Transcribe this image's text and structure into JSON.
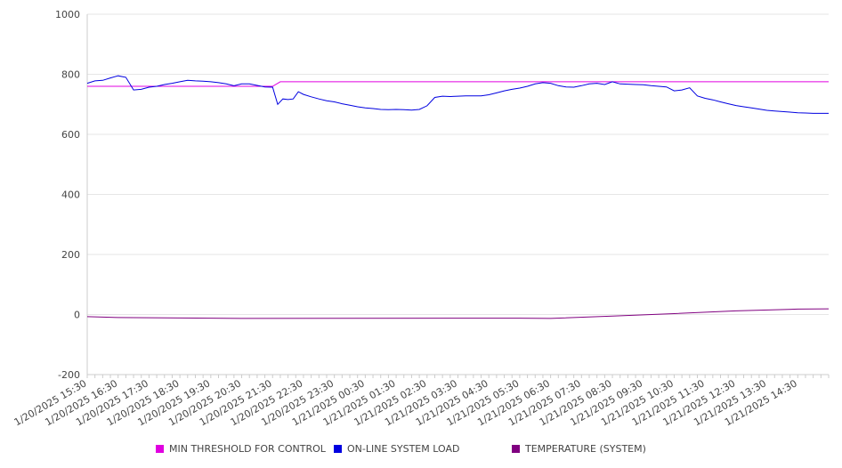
{
  "chart_data": {
    "type": "line",
    "title": "",
    "xlabel": "",
    "ylabel": "",
    "ylim": [
      -200,
      1000
    ],
    "yticks": [
      -200,
      0,
      200,
      400,
      600,
      800,
      1000
    ],
    "x_tick_labels": [
      "1/20/2025 15:30",
      "1/20/2025 16:30",
      "1/20/2025 17:30",
      "1/20/2025 18:30",
      "1/20/2025 19:30",
      "1/20/2025 20:30",
      "1/20/2025 21:30",
      "1/20/2025 22:30",
      "1/20/2025 23:30",
      "1/21/2025 00:30",
      "1/21/2025 01:30",
      "1/21/2025 02:30",
      "1/21/2025 03:30",
      "1/21/2025 04:30",
      "1/21/2025 05:30",
      "1/21/2025 06:30",
      "1/21/2025 07:30",
      "1/21/2025 08:30",
      "1/21/2025 09:30",
      "1/21/2025 10:30",
      "1/21/2025 11:30",
      "1/21/2025 12:30",
      "1/21/2025 13:30",
      "1/21/2025 14:30"
    ],
    "grid": true,
    "legend_position": "bottom",
    "series": [
      {
        "name": "MIN THRESHOLD FOR CONTROL",
        "color": "#e000e0",
        "points": [
          [
            "1/20/2025 15:30",
            760
          ],
          [
            "1/20/2025 21:30",
            760
          ],
          [
            "1/20/2025 21:45",
            775
          ],
          [
            "1/21/2025 15:30",
            775
          ]
        ]
      },
      {
        "name": "ON-LINE SYSTEM LOAD",
        "color": "#0000e0",
        "points": [
          [
            "1/20/2025 15:30",
            770
          ],
          [
            "1/20/2025 15:45",
            778
          ],
          [
            "1/20/2025 16:00",
            780
          ],
          [
            "1/20/2025 16:15",
            788
          ],
          [
            "1/20/2025 16:30",
            795
          ],
          [
            "1/20/2025 16:45",
            790
          ],
          [
            "1/20/2025 17:00",
            748
          ],
          [
            "1/20/2025 17:15",
            750
          ],
          [
            "1/20/2025 17:30",
            757
          ],
          [
            "1/20/2025 17:45",
            760
          ],
          [
            "1/20/2025 18:00",
            766
          ],
          [
            "1/20/2025 18:15",
            770
          ],
          [
            "1/20/2025 18:30",
            775
          ],
          [
            "1/20/2025 18:45",
            780
          ],
          [
            "1/20/2025 19:00",
            778
          ],
          [
            "1/20/2025 19:15",
            777
          ],
          [
            "1/20/2025 19:30",
            775
          ],
          [
            "1/20/2025 19:45",
            772
          ],
          [
            "1/20/2025 20:00",
            768
          ],
          [
            "1/20/2025 20:15",
            762
          ],
          [
            "1/20/2025 20:30",
            768
          ],
          [
            "1/20/2025 20:45",
            768
          ],
          [
            "1/20/2025 21:00",
            763
          ],
          [
            "1/20/2025 21:15",
            758
          ],
          [
            "1/20/2025 21:30",
            757
          ],
          [
            "1/20/2025 21:40",
            700
          ],
          [
            "1/20/2025 21:50",
            718
          ],
          [
            "1/20/2025 22:00",
            716
          ],
          [
            "1/20/2025 22:10",
            718
          ],
          [
            "1/20/2025 22:20",
            742
          ],
          [
            "1/20/2025 22:30",
            733
          ],
          [
            "1/20/2025 22:45",
            725
          ],
          [
            "1/20/2025 23:00",
            718
          ],
          [
            "1/20/2025 23:15",
            712
          ],
          [
            "1/20/2025 23:30",
            708
          ],
          [
            "1/20/2025 23:45",
            702
          ],
          [
            "1/21/2025 00:00",
            697
          ],
          [
            "1/21/2025 00:15",
            692
          ],
          [
            "1/21/2025 00:30",
            688
          ],
          [
            "1/21/2025 00:45",
            686
          ],
          [
            "1/21/2025 01:00",
            683
          ],
          [
            "1/21/2025 01:15",
            682
          ],
          [
            "1/21/2025 01:30",
            683
          ],
          [
            "1/21/2025 01:45",
            682
          ],
          [
            "1/21/2025 02:00",
            681
          ],
          [
            "1/21/2025 02:15",
            683
          ],
          [
            "1/21/2025 02:30",
            695
          ],
          [
            "1/21/2025 02:45",
            723
          ],
          [
            "1/21/2025 03:00",
            727
          ],
          [
            "1/21/2025 03:15",
            726
          ],
          [
            "1/21/2025 03:30",
            727
          ],
          [
            "1/21/2025 03:45",
            728
          ],
          [
            "1/21/2025 04:00",
            728
          ],
          [
            "1/21/2025 04:15",
            728
          ],
          [
            "1/21/2025 04:30",
            732
          ],
          [
            "1/21/2025 04:45",
            738
          ],
          [
            "1/21/2025 05:00",
            745
          ],
          [
            "1/21/2025 05:15",
            750
          ],
          [
            "1/21/2025 05:30",
            754
          ],
          [
            "1/21/2025 05:45",
            760
          ],
          [
            "1/21/2025 06:00",
            768
          ],
          [
            "1/21/2025 06:15",
            772
          ],
          [
            "1/21/2025 06:30",
            770
          ],
          [
            "1/21/2025 06:45",
            762
          ],
          [
            "1/21/2025 07:00",
            758
          ],
          [
            "1/21/2025 07:15",
            757
          ],
          [
            "1/21/2025 07:30",
            762
          ],
          [
            "1/21/2025 07:45",
            768
          ],
          [
            "1/21/2025 08:00",
            770
          ],
          [
            "1/21/2025 08:15",
            766
          ],
          [
            "1/21/2025 08:30",
            775
          ],
          [
            "1/21/2025 08:45",
            768
          ],
          [
            "1/21/2025 09:00",
            767
          ],
          [
            "1/21/2025 09:15",
            766
          ],
          [
            "1/21/2025 09:30",
            765
          ],
          [
            "1/21/2025 09:45",
            762
          ],
          [
            "1/21/2025 10:00",
            760
          ],
          [
            "1/21/2025 10:15",
            758
          ],
          [
            "1/21/2025 10:30",
            745
          ],
          [
            "1/21/2025 10:45",
            748
          ],
          [
            "1/21/2025 11:00",
            755
          ],
          [
            "1/21/2025 11:15",
            728
          ],
          [
            "1/21/2025 11:30",
            720
          ],
          [
            "1/21/2025 11:45",
            715
          ],
          [
            "1/21/2025 12:00",
            708
          ],
          [
            "1/21/2025 12:15",
            702
          ],
          [
            "1/21/2025 12:30",
            696
          ],
          [
            "1/21/2025 12:45",
            692
          ],
          [
            "1/21/2025 13:00",
            688
          ],
          [
            "1/21/2025 13:15",
            684
          ],
          [
            "1/21/2025 13:30",
            680
          ],
          [
            "1/21/2025 13:45",
            678
          ],
          [
            "1/21/2025 14:00",
            676
          ],
          [
            "1/21/2025 14:15",
            674
          ],
          [
            "1/21/2025 14:30",
            672
          ],
          [
            "1/21/2025 14:45",
            671
          ],
          [
            "1/21/2025 15:00",
            670
          ],
          [
            "1/21/2025 15:15",
            670
          ],
          [
            "1/21/2025 15:30",
            670
          ]
        ]
      },
      {
        "name": "TEMPERATURE (SYSTEM)",
        "color": "#800080",
        "points": [
          [
            "1/20/2025 15:30",
            -7
          ],
          [
            "1/20/2025 16:30",
            -10
          ],
          [
            "1/20/2025 20:30",
            -13
          ],
          [
            "1/21/2025 05:30",
            -12
          ],
          [
            "1/21/2025 06:30",
            -13
          ],
          [
            "1/21/2025 08:30",
            -5
          ],
          [
            "1/21/2025 10:30",
            3
          ],
          [
            "1/21/2025 12:30",
            12
          ],
          [
            "1/21/2025 14:30",
            18
          ],
          [
            "1/21/2025 15:30",
            19
          ]
        ]
      }
    ]
  }
}
